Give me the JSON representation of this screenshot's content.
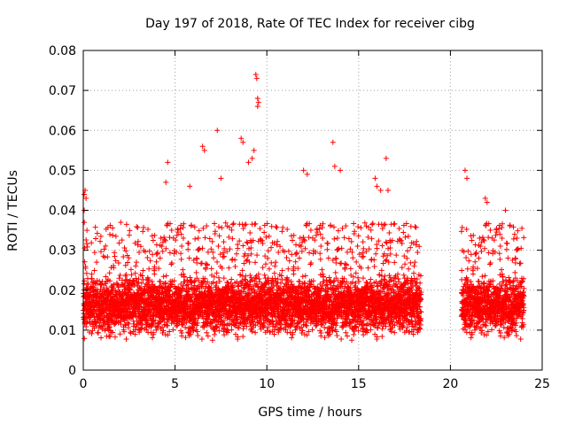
{
  "chart_data": {
    "type": "scatter",
    "title": "Day 197 of 2018, Rate Of TEC Index for receiver cibg",
    "xlabel": "GPS time / hours",
    "ylabel": "ROTI / TECUs",
    "xlim": [
      0,
      25
    ],
    "ylim": [
      0,
      0.08
    ],
    "x_ticks": [
      0,
      5,
      10,
      15,
      20,
      25
    ],
    "y_ticks": [
      0,
      0.01,
      0.02,
      0.03,
      0.04,
      0.05,
      0.06,
      0.07,
      0.08
    ],
    "x_tick_labels": [
      "0",
      "5",
      "10",
      "15",
      "20",
      "25"
    ],
    "y_tick_labels": [
      "0",
      "0.01",
      "0.02",
      "0.03",
      "0.04",
      "0.05",
      "0.06",
      "0.07",
      "0.08"
    ],
    "grid": true,
    "marker": "+",
    "series": [
      {
        "name": "ROTI",
        "color": "#ff0000",
        "coverage": [
          [
            0.0,
            18.4
          ],
          [
            20.6,
            24.0
          ]
        ],
        "typical_range": [
          0.005,
          0.025
        ],
        "outliers": [
          [
            0.05,
            0.044
          ],
          [
            0.1,
            0.045
          ],
          [
            0.15,
            0.043
          ],
          [
            0.05,
            0.04
          ],
          [
            0.2,
            0.035
          ],
          [
            4.5,
            0.047
          ],
          [
            4.6,
            0.052
          ],
          [
            5.8,
            0.046
          ],
          [
            6.5,
            0.056
          ],
          [
            6.6,
            0.055
          ],
          [
            7.3,
            0.06
          ],
          [
            7.5,
            0.048
          ],
          [
            8.6,
            0.058
          ],
          [
            8.7,
            0.057
          ],
          [
            9.0,
            0.052
          ],
          [
            9.2,
            0.053
          ],
          [
            9.4,
            0.074
          ],
          [
            9.45,
            0.073
          ],
          [
            9.5,
            0.068
          ],
          [
            9.5,
            0.066
          ],
          [
            9.55,
            0.067
          ],
          [
            9.3,
            0.055
          ],
          [
            12.0,
            0.05
          ],
          [
            12.2,
            0.049
          ],
          [
            13.6,
            0.057
          ],
          [
            13.7,
            0.051
          ],
          [
            14.0,
            0.05
          ],
          [
            15.9,
            0.048
          ],
          [
            16.0,
            0.046
          ],
          [
            16.2,
            0.045
          ],
          [
            16.5,
            0.053
          ],
          [
            16.6,
            0.045
          ],
          [
            20.8,
            0.05
          ],
          [
            20.9,
            0.048
          ],
          [
            21.9,
            0.043
          ],
          [
            22.0,
            0.042
          ],
          [
            23.0,
            0.04
          ],
          [
            23.5,
            0.034
          ]
        ]
      }
    ]
  }
}
